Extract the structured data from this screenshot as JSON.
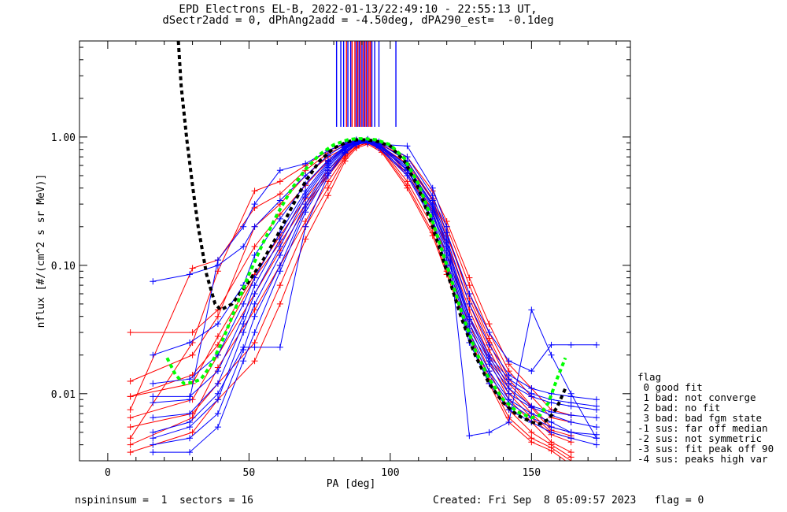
{
  "chart_data": {
    "type": "line",
    "title": "EPD Electrons EL-B, 2022-01-13/22:49:10 - 22:55:13 UT,",
    "subtitle": "dSectr2add = 0, dPhAng2add = -4.50deg, dPA290_est=  -0.1deg",
    "xlabel": "PA [deg]",
    "ylabel": "nflux [#/(cm^2 s sr MeV)]",
    "xlim": [
      -10,
      185
    ],
    "ylim": [
      0.003,
      5.6
    ],
    "yscale": "log",
    "x_ticks": [
      0,
      50,
      100,
      150
    ],
    "y_ticks": [
      {
        "value": 0.01,
        "label": "0.01"
      },
      {
        "value": 0.1,
        "label": "0.10"
      },
      {
        "value": 1.0,
        "label": "1.00"
      }
    ],
    "colors": {
      "red": "#ff0000",
      "blue": "#0000ff",
      "black": "#000000",
      "green": "#00ff00"
    },
    "vertical_markers": {
      "red_x": [
        84.5,
        86.5,
        87.5,
        88.5,
        89.5,
        90.5,
        91.5,
        92.5,
        93
      ],
      "blue_x": [
        81,
        82.5,
        83.5,
        85,
        86,
        88,
        89,
        90,
        91,
        92,
        93.5,
        94.5,
        96,
        102
      ],
      "y_range": [
        1.2,
        5.6
      ]
    },
    "series": [
      {
        "color": "red",
        "x": [
          8,
          30,
          39,
          52,
          61,
          70,
          78,
          84,
          88,
          92,
          97,
          106,
          115,
          120,
          128,
          135,
          142,
          150,
          157,
          164
        ],
        "y": [
          0.0095,
          0.012,
          0.028,
          0.085,
          0.17,
          0.33,
          0.55,
          0.75,
          0.9,
          0.93,
          0.87,
          0.55,
          0.27,
          0.15,
          0.05,
          0.022,
          0.011,
          0.007,
          0.005,
          0.0045
        ]
      },
      {
        "color": "red",
        "x": [
          8,
          30,
          39,
          52,
          61,
          70,
          78,
          84,
          88,
          92,
          97,
          106,
          115,
          120,
          128,
          135,
          142,
          150,
          157,
          164
        ],
        "y": [
          0.03,
          0.03,
          0.045,
          0.14,
          0.25,
          0.42,
          0.65,
          0.8,
          0.92,
          0.9,
          0.85,
          0.6,
          0.3,
          0.17,
          0.06,
          0.027,
          0.013,
          0.008,
          0.0055,
          0.005
        ]
      },
      {
        "color": "red",
        "x": [
          8,
          30,
          39,
          52,
          61,
          70,
          78,
          84,
          88,
          92,
          97,
          106,
          115,
          120,
          128,
          135,
          142,
          150,
          157,
          164
        ],
        "y": [
          0.0065,
          0.009,
          0.02,
          0.06,
          0.13,
          0.28,
          0.5,
          0.72,
          0.88,
          0.92,
          0.82,
          0.5,
          0.22,
          0.12,
          0.04,
          0.018,
          0.009,
          0.006,
          0.0042,
          0.0035
        ]
      },
      {
        "color": "red",
        "x": [
          8,
          30,
          39,
          52,
          61,
          70,
          78,
          84,
          88,
          92,
          97,
          106,
          115,
          120,
          128,
          135,
          142,
          150,
          157,
          164
        ],
        "y": [
          0.004,
          0.0065,
          0.016,
          0.045,
          0.1,
          0.22,
          0.45,
          0.7,
          0.85,
          0.9,
          0.8,
          0.45,
          0.2,
          0.1,
          0.035,
          0.015,
          0.0075,
          0.005,
          0.004,
          0.0032
        ]
      },
      {
        "color": "red",
        "x": [
          8,
          30,
          39,
          52,
          61,
          70,
          78,
          84,
          88,
          92,
          97,
          106,
          115,
          120,
          128,
          135,
          142,
          150,
          157,
          164
        ],
        "y": [
          0.0125,
          0.02,
          0.04,
          0.2,
          0.3,
          0.5,
          0.7,
          0.82,
          0.93,
          0.95,
          0.88,
          0.65,
          0.33,
          0.2,
          0.07,
          0.03,
          0.015,
          0.0095,
          0.0065,
          0.006
        ]
      },
      {
        "color": "red",
        "x": [
          8,
          30,
          39,
          52,
          61,
          70,
          78,
          84,
          88,
          92,
          97,
          106,
          115,
          120,
          128,
          135,
          142,
          150,
          157,
          164
        ],
        "y": [
          0.0045,
          0.025,
          0.09,
          0.38,
          0.45,
          0.6,
          0.78,
          0.88,
          0.95,
          0.94,
          0.86,
          0.7,
          0.38,
          0.22,
          0.08,
          0.035,
          0.017,
          0.011,
          0.0075,
          0.0068
        ]
      },
      {
        "color": "red",
        "x": [
          8,
          30,
          39,
          52,
          61,
          70,
          78,
          84,
          88,
          92,
          97,
          106,
          115,
          120,
          128,
          135,
          142,
          150,
          157,
          164
        ],
        "y": [
          0.0075,
          0.095,
          0.11,
          0.28,
          0.36,
          0.55,
          0.75,
          0.85,
          0.94,
          0.92,
          0.84,
          0.62,
          0.32,
          0.18,
          0.055,
          0.025,
          0.012,
          0.0078,
          0.0052,
          0.0047
        ]
      },
      {
        "color": "red",
        "x": [
          8,
          30,
          39,
          52,
          61,
          70,
          78,
          84,
          88,
          92,
          97,
          106,
          115,
          120,
          128,
          135,
          142,
          150,
          157,
          164
        ],
        "y": [
          0.0055,
          0.007,
          0.012,
          0.025,
          0.07,
          0.2,
          0.4,
          0.68,
          0.84,
          0.9,
          0.78,
          0.42,
          0.18,
          0.09,
          0.03,
          0.013,
          0.0065,
          0.0045,
          0.0038,
          0.003
        ]
      },
      {
        "color": "red",
        "x": [
          8,
          30,
          39,
          52,
          61,
          70,
          78,
          84,
          88,
          92,
          97,
          106,
          115,
          120,
          128,
          135,
          142,
          150,
          157,
          164
        ],
        "y": [
          0.0035,
          0.005,
          0.009,
          0.018,
          0.05,
          0.16,
          0.35,
          0.65,
          0.82,
          0.88,
          0.76,
          0.4,
          0.17,
          0.085,
          0.028,
          0.012,
          0.006,
          0.0042,
          0.0036,
          0.0028
        ]
      },
      {
        "color": "red",
        "x": [
          8,
          30,
          39,
          52,
          61,
          70,
          78,
          84,
          88,
          92,
          97,
          106,
          115,
          120,
          128,
          135,
          142,
          150,
          157,
          164
        ],
        "y": [
          0.0095,
          0.014,
          0.024,
          0.08,
          0.15,
          0.3,
          0.52,
          0.74,
          0.89,
          0.92,
          0.86,
          0.52,
          0.25,
          0.14,
          0.045,
          0.02,
          0.01,
          0.0065,
          0.0048,
          0.0042
        ]
      },
      {
        "color": "blue",
        "x": [
          16,
          29,
          39,
          48,
          52,
          61,
          70,
          78,
          84,
          88,
          92,
          96,
          106,
          115,
          120,
          128,
          135,
          142,
          150,
          157,
          164,
          173
        ],
        "y": [
          0.0045,
          0.0055,
          0.009,
          0.03,
          0.05,
          0.12,
          0.3,
          0.58,
          0.8,
          0.9,
          0.92,
          0.85,
          0.55,
          0.25,
          0.12,
          0.03,
          0.015,
          0.009,
          0.007,
          0.006,
          0.005,
          0.0045
        ]
      },
      {
        "color": "blue",
        "x": [
          16,
          29,
          39,
          48,
          52,
          61,
          70,
          78,
          84,
          88,
          92,
          96,
          106,
          115,
          120,
          128,
          135,
          142,
          150,
          157,
          164,
          173
        ],
        "y": [
          0.0095,
          0.0095,
          0.015,
          0.04,
          0.07,
          0.16,
          0.36,
          0.62,
          0.83,
          0.92,
          0.93,
          0.86,
          0.58,
          0.28,
          0.14,
          0.035,
          0.018,
          0.011,
          0.008,
          0.0072,
          0.0068,
          0.0065
        ]
      },
      {
        "color": "blue",
        "x": [
          16,
          29,
          39,
          48,
          52,
          61,
          70,
          78,
          84,
          88,
          92,
          96,
          106,
          115,
          120,
          128,
          135,
          142,
          150,
          157,
          164,
          173
        ],
        "y": [
          0.075,
          0.085,
          0.1,
          0.14,
          0.2,
          0.32,
          0.5,
          0.72,
          0.87,
          0.94,
          0.95,
          0.9,
          0.65,
          0.32,
          0.16,
          0.05,
          0.024,
          0.014,
          0.011,
          0.01,
          0.0095,
          0.009
        ]
      },
      {
        "color": "blue",
        "x": [
          16,
          29,
          39,
          48,
          52,
          61,
          70,
          78,
          84,
          88,
          92,
          96,
          106,
          115,
          120,
          128,
          135,
          142,
          150,
          157,
          164,
          173
        ],
        "y": [
          0.0035,
          0.0035,
          0.0055,
          0.018,
          0.03,
          0.09,
          0.26,
          0.52,
          0.76,
          0.88,
          0.9,
          0.82,
          0.5,
          0.22,
          0.1,
          0.025,
          0.012,
          0.0075,
          0.006,
          0.005,
          0.0045,
          0.004
        ]
      },
      {
        "color": "blue",
        "x": [
          16,
          29,
          39,
          48,
          52,
          61,
          70,
          78,
          84,
          88,
          92,
          96,
          106,
          115,
          120,
          128,
          135,
          142,
          150,
          157,
          164,
          173
        ],
        "y": [
          0.02,
          0.025,
          0.035,
          0.07,
          0.12,
          0.23,
          0.43,
          0.66,
          0.85,
          0.93,
          0.94,
          0.88,
          0.6,
          0.3,
          0.15,
          0.04,
          0.02,
          0.013,
          0.01,
          0.009,
          0.0085,
          0.008
        ]
      },
      {
        "color": "blue",
        "x": [
          16,
          29,
          39,
          48,
          52,
          61,
          70,
          78,
          84,
          88,
          92,
          96,
          106,
          115,
          120,
          128,
          135,
          142,
          150,
          157,
          164,
          173
        ],
        "y": [
          0.0065,
          0.007,
          0.012,
          0.035,
          0.06,
          0.14,
          0.34,
          0.6,
          0.82,
          0.91,
          0.92,
          0.85,
          0.56,
          0.26,
          0.13,
          0.032,
          0.017,
          0.01,
          0.0078,
          0.0068,
          0.006,
          0.0055
        ]
      },
      {
        "color": "blue",
        "x": [
          16,
          29,
          39,
          48,
          52,
          61,
          70,
          78,
          84,
          88,
          92,
          96,
          106,
          115,
          120,
          128,
          135,
          142,
          150,
          157,
          164,
          173
        ],
        "y": [
          0.004,
          0.0045,
          0.007,
          0.022,
          0.04,
          0.1,
          0.28,
          0.55,
          0.78,
          0.89,
          0.91,
          0.83,
          0.52,
          0.23,
          0.11,
          0.028,
          0.014,
          0.0085,
          0.0065,
          0.0055,
          0.005,
          0.0048
        ]
      },
      {
        "color": "blue",
        "x": [
          16,
          29,
          39,
          48,
          52,
          61,
          70,
          78,
          84,
          88,
          92,
          96,
          106,
          115,
          120,
          128,
          135,
          142,
          150,
          157,
          164,
          173
        ],
        "y": [
          0.012,
          0.013,
          0.02,
          0.05,
          0.08,
          0.18,
          0.38,
          0.64,
          0.84,
          0.92,
          0.93,
          0.87,
          0.6,
          0.29,
          0.14,
          0.038,
          0.019,
          0.012,
          0.0095,
          0.0085,
          0.008,
          0.0075
        ]
      },
      {
        "color": "blue",
        "x": [
          16,
          29,
          39,
          48,
          52,
          61,
          70,
          78,
          84,
          88,
          92,
          96,
          106,
          115,
          120,
          128,
          135,
          142,
          150,
          157,
          164,
          173
        ],
        "y": [
          0.0085,
          0.009,
          0.11,
          0.2,
          0.3,
          0.55,
          0.62,
          0.78,
          0.9,
          0.95,
          0.96,
          0.92,
          0.7,
          0.35,
          0.18,
          0.06,
          0.03,
          0.018,
          0.015,
          0.024,
          0.024,
          0.024
        ]
      },
      {
        "color": "blue",
        "x": [
          16,
          29,
          39,
          48,
          52,
          61,
          70,
          78,
          84,
          88,
          92,
          96,
          106,
          115,
          120,
          128,
          135,
          142,
          150,
          157,
          164,
          173
        ],
        "y": [
          0.005,
          0.006,
          0.01,
          0.023,
          0.023,
          0.023,
          0.2,
          0.5,
          0.75,
          0.87,
          0.92,
          0.88,
          0.85,
          0.4,
          0.2,
          0.0047,
          0.005,
          0.006,
          0.045,
          0.02,
          0.01,
          0.0045
        ]
      }
    ],
    "fit_curves": [
      {
        "color": "black",
        "x": [
          25,
          26,
          28,
          30,
          32,
          35,
          38,
          40,
          44,
          50,
          55,
          60,
          65,
          70,
          75,
          80,
          85,
          88,
          91,
          95,
          100,
          105,
          110,
          115,
          120,
          125,
          130,
          135,
          140,
          145,
          150,
          153,
          156,
          159,
          162
        ],
        "y": [
          5.6,
          2.5,
          0.95,
          0.42,
          0.2,
          0.085,
          0.05,
          0.045,
          0.05,
          0.075,
          0.11,
          0.17,
          0.28,
          0.45,
          0.65,
          0.82,
          0.92,
          0.95,
          0.95,
          0.93,
          0.85,
          0.65,
          0.4,
          0.2,
          0.09,
          0.04,
          0.02,
          0.012,
          0.0085,
          0.0068,
          0.006,
          0.0058,
          0.0063,
          0.0078,
          0.011
        ]
      },
      {
        "color": "green",
        "x": [
          21,
          24,
          27,
          30,
          33,
          36,
          40,
          45,
          50,
          55,
          60,
          65,
          70,
          75,
          80,
          85,
          88,
          91,
          95,
          100,
          105,
          110,
          115,
          120,
          125,
          130,
          135,
          140,
          145,
          150,
          153,
          156,
          159,
          162
        ],
        "y": [
          0.019,
          0.014,
          0.012,
          0.0122,
          0.013,
          0.016,
          0.024,
          0.045,
          0.085,
          0.15,
          0.25,
          0.39,
          0.56,
          0.73,
          0.87,
          0.95,
          0.97,
          0.97,
          0.95,
          0.87,
          0.68,
          0.43,
          0.22,
          0.1,
          0.045,
          0.022,
          0.013,
          0.009,
          0.0072,
          0.0065,
          0.0068,
          0.0085,
          0.013,
          0.019
        ]
      }
    ]
  },
  "legend": {
    "heading": "flag",
    "items": [
      " 0 good fit",
      " 1 bad: not converge",
      " 2 bad: no fit",
      " 3 bad: bad fgm state",
      "-1 sus: far off median",
      "-2 sus: not symmetric",
      "-3 sus: fit peak off 90",
      "-4 sus: peaks high var"
    ]
  },
  "footer": {
    "left": "nspininsum =  1  sectors = 16",
    "right": "Created: Fri Sep  8 05:09:57 2023   flag = 0"
  }
}
